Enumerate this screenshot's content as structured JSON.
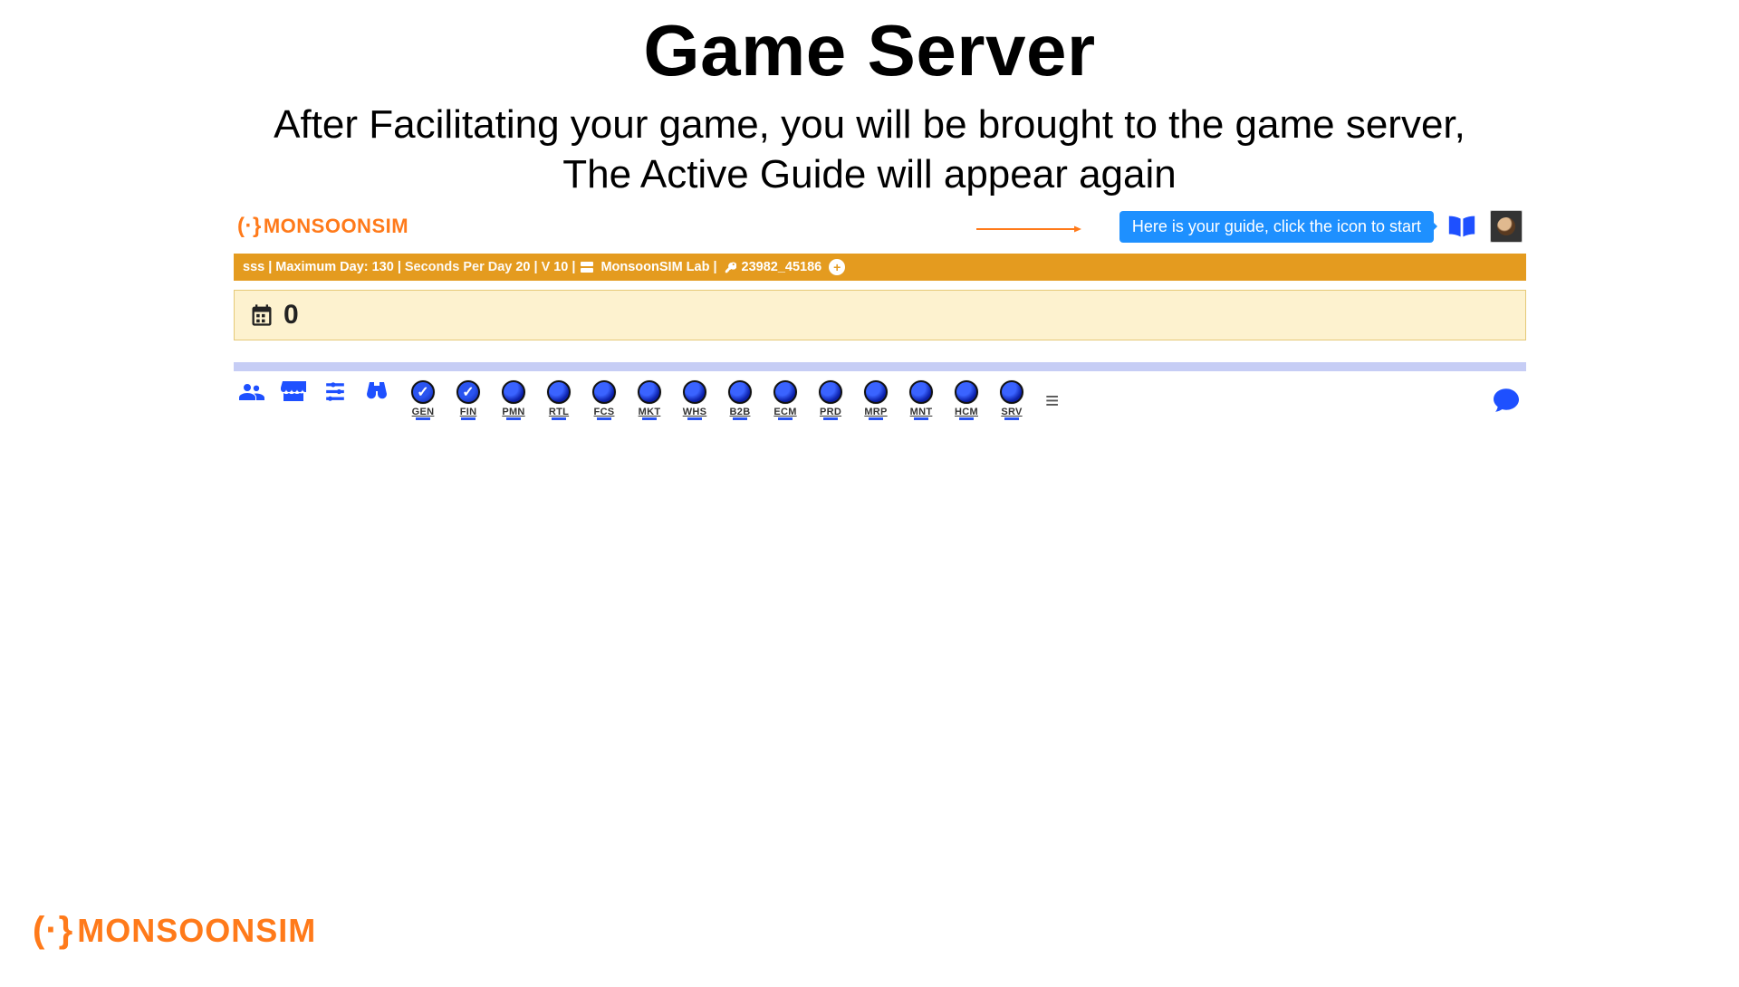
{
  "slide": {
    "title": "Game Server",
    "subtitle_line1": "After Facilitating your game, you will be brought to the game server,",
    "subtitle_line2": "The Active Guide will appear again"
  },
  "colors": {
    "brand_orange": "#ff7a1a",
    "accent_blue": "#1e50ff",
    "tooltip_blue": "#1e90ff",
    "info_bar_bg": "#e49b1f",
    "day_bar_bg": "#fdf2cf",
    "day_bar_border": "#e5c978",
    "thin_blue": "#c6cdf5"
  },
  "header": {
    "logo_text": "MONSOONSIM",
    "tooltip": "Here is your guide, click the icon to start"
  },
  "info_bar": {
    "prefix": "sss",
    "max_day_label": "Maximum Day:",
    "max_day_value": "130",
    "spd_label": "Seconds Per Day",
    "spd_value": "20",
    "v_label": "V",
    "v_value": "10",
    "lab_label": "MonsoonSIM Lab",
    "session_id": "23982_45186"
  },
  "day_bar": {
    "value": "0"
  },
  "left_icons": [
    {
      "name": "people-icon"
    },
    {
      "name": "shop-icon"
    },
    {
      "name": "sliders-icon"
    },
    {
      "name": "binoculars-icon"
    }
  ],
  "modules": [
    {
      "code": "GEN",
      "checked": true
    },
    {
      "code": "FIN",
      "checked": true
    },
    {
      "code": "PMN",
      "checked": false
    },
    {
      "code": "RTL",
      "checked": false
    },
    {
      "code": "FCS",
      "checked": false
    },
    {
      "code": "MKT",
      "checked": false
    },
    {
      "code": "WHS",
      "checked": false
    },
    {
      "code": "B2B",
      "checked": false
    },
    {
      "code": "ECM",
      "checked": false
    },
    {
      "code": "PRD",
      "checked": false
    },
    {
      "code": "MRP",
      "checked": false
    },
    {
      "code": "MNT",
      "checked": false
    },
    {
      "code": "HCM",
      "checked": false
    },
    {
      "code": "SRV",
      "checked": false
    }
  ],
  "footer": {
    "logo_text": "MONSOONSIM"
  }
}
